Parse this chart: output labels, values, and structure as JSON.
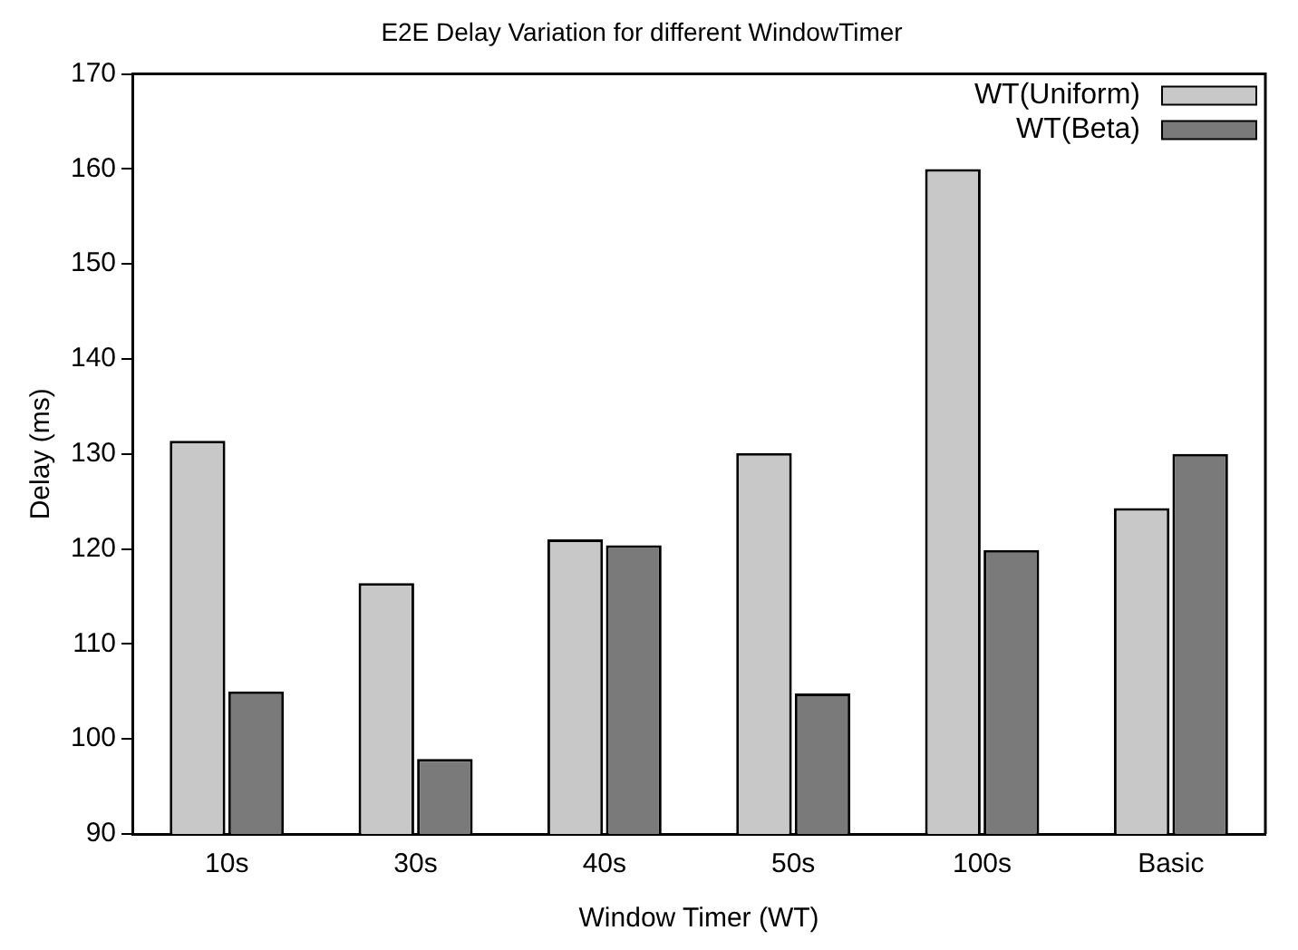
{
  "chart_data": {
    "type": "bar",
    "title": "E2E Delay Variation for different WindowTimer",
    "xlabel": "Window Timer (WT)",
    "ylabel": "Delay (ms)",
    "categories": [
      "10s",
      "30s",
      "40s",
      "50s",
      "100s",
      "Basic"
    ],
    "series": [
      {
        "name": "WT(Uniform)",
        "color": "#c8c8c8",
        "values": [
          131.4,
          116.4,
          121.0,
          130.1,
          160.0,
          124.3
        ]
      },
      {
        "name": "WT(Beta)",
        "color": "#7a7a7a",
        "values": [
          105.0,
          97.9,
          120.4,
          104.8,
          119.9,
          130.0
        ]
      }
    ],
    "ylim": [
      90,
      170
    ],
    "yticks": [
      90,
      100,
      110,
      120,
      130,
      140,
      150,
      160,
      170
    ],
    "grid": false,
    "legend": "top right"
  }
}
